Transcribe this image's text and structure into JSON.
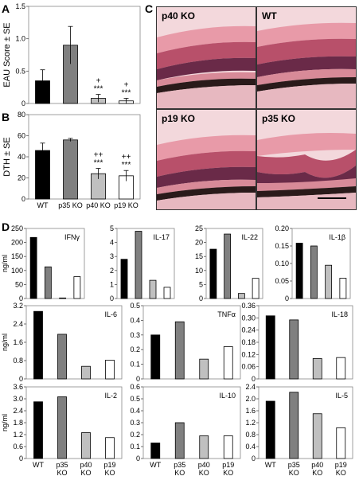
{
  "panel_letters": [
    "A",
    "B",
    "C",
    "D"
  ],
  "colors": {
    "WT": "#000000",
    "p35 KO": "#808080",
    "p40 KO": "#c0c0c0",
    "p19 KO": "#ffffff"
  },
  "groups": [
    "WT",
    "p35 KO",
    "p40 KO",
    "p19 KO"
  ],
  "micrographs": [
    {
      "label": "p40 KO"
    },
    {
      "label": "WT"
    },
    {
      "label": "p19 KO"
    },
    {
      "label": "p35 KO"
    }
  ],
  "chart_data": [
    {
      "id": "A",
      "type": "bar",
      "ylabel": "EAU Score ± SE",
      "ylim": [
        0,
        1.5
      ],
      "yticks": [
        "0",
        "0.5",
        "1.0",
        "1.5"
      ],
      "categories": [
        "WT",
        "p35 KO",
        "p40 KO",
        "p19 KO"
      ],
      "values": [
        0.35,
        0.9,
        0.08,
        0.04
      ],
      "errors": [
        0.17,
        0.29,
        0.06,
        0.04
      ],
      "annotations": [
        "",
        "",
        "+\n***",
        "+\n***"
      ],
      "show_x_labels": false
    },
    {
      "id": "B",
      "type": "bar",
      "ylabel": "DTH ± SE",
      "ylim": [
        0,
        80
      ],
      "yticks": [
        "0",
        "20",
        "40",
        "60",
        "80"
      ],
      "categories": [
        "WT",
        "p35 KO",
        "p40 KO",
        "p19 KO"
      ],
      "values": [
        46,
        56,
        24,
        22
      ],
      "errors": [
        7,
        1.5,
        5,
        5
      ],
      "annotations": [
        "",
        "",
        "++\n***",
        "++\n***"
      ],
      "show_x_labels": true
    },
    {
      "id": "IFNγ",
      "type": "bar",
      "title": "IFNγ",
      "ylabel": "ng/ml",
      "ylim": [
        0,
        250
      ],
      "yticks": [
        "0",
        "50",
        "100",
        "150",
        "200",
        "250"
      ],
      "categories": [
        "WT",
        "p35 KO",
        "p40 KO",
        "p19 KO"
      ],
      "values": [
        218,
        113,
        2,
        78
      ]
    },
    {
      "id": "IL-17",
      "type": "bar",
      "title": "IL-17",
      "ylabel": "",
      "ylim": [
        0,
        5
      ],
      "yticks": [
        "0",
        "1",
        "2",
        "3",
        "4",
        "5"
      ],
      "categories": [
        "WT",
        "p35 KO",
        "p40 KO",
        "p19 KO"
      ],
      "values": [
        2.8,
        4.8,
        1.3,
        0.8
      ]
    },
    {
      "id": "IL-22",
      "type": "bar",
      "title": "IL-22",
      "ylabel": "",
      "ylim": [
        0,
        25
      ],
      "yticks": [
        "0",
        "5",
        "10",
        "15",
        "20",
        "25"
      ],
      "categories": [
        "WT",
        "p35 KO",
        "p40 KO",
        "p19 KO"
      ],
      "values": [
        17.6,
        23,
        1.8,
        7.2
      ]
    },
    {
      "id": "IL-1β",
      "type": "bar",
      "title": "IL-1β",
      "ylabel": "",
      "ylim": [
        0,
        0.2
      ],
      "yticks": [
        "0",
        "0.05",
        "0.10",
        "0.15",
        "0.20"
      ],
      "categories": [
        "WT",
        "p35 KO",
        "p40 KO",
        "p19 KO"
      ],
      "values": [
        0.158,
        0.15,
        0.095,
        0.058
      ]
    },
    {
      "id": "IL-6",
      "type": "bar",
      "title": "IL-6",
      "ylabel": "ng/ml",
      "ylim": [
        0,
        3.2
      ],
      "yticks": [
        "0",
        "0.8",
        "1.6",
        "2.4",
        "3.2"
      ],
      "categories": [
        "WT",
        "p35 KO",
        "p40 KO",
        "p19 KO"
      ],
      "values": [
        2.95,
        1.95,
        0.55,
        0.82
      ]
    },
    {
      "id": "TNFα",
      "type": "bar",
      "title": "TNFα",
      "ylabel": "",
      "ylim": [
        0,
        0.5
      ],
      "yticks": [
        "0",
        "0.1",
        "0.2",
        "0.3",
        "0.4",
        "0.5"
      ],
      "categories": [
        "WT",
        "p35 KO",
        "p40 KO",
        "p19 KO"
      ],
      "values": [
        0.3,
        0.39,
        0.135,
        0.22
      ]
    },
    {
      "id": "IL-18",
      "type": "bar",
      "title": "IL-18",
      "ylabel": "",
      "ylim": [
        0,
        0.36
      ],
      "yticks": [
        "0",
        "0.06",
        "0.12",
        "0.18",
        "0.24",
        "0.30",
        "0.36"
      ],
      "categories": [
        "WT",
        "p35 KO",
        "p40 KO",
        "p19 KO"
      ],
      "values": [
        0.31,
        0.29,
        0.1,
        0.105
      ]
    },
    {
      "id": "IL-2",
      "type": "bar",
      "title": "IL-2",
      "ylabel": "ng/ml",
      "ylim": [
        0,
        3.6
      ],
      "yticks": [
        "0",
        "0.6",
        "1.2",
        "1.8",
        "2.4",
        "3.0",
        "3.6"
      ],
      "categories": [
        "WT",
        "p35 KO",
        "p40 KO",
        "p19 KO"
      ],
      "values": [
        2.85,
        3.1,
        1.3,
        1.05
      ],
      "xlabels": [
        "WT",
        "p35\nKO",
        "p40\nKO",
        "p19\nKO"
      ]
    },
    {
      "id": "IL-10",
      "type": "bar",
      "title": "IL-10",
      "ylabel": "",
      "ylim": [
        0,
        0.6
      ],
      "yticks": [
        "0",
        "0.1",
        "0.2",
        "0.3",
        "0.4",
        "0.5",
        "0.6"
      ],
      "categories": [
        "WT",
        "p35 KO",
        "p40 KO",
        "p19 KO"
      ],
      "values": [
        0.13,
        0.3,
        0.19,
        0.19
      ],
      "xlabels": [
        "WT",
        "p35\nKO",
        "p40\nKO",
        "p19\nKO"
      ]
    },
    {
      "id": "IL-5",
      "type": "bar",
      "title": "IL-5",
      "ylabel": "",
      "ylim": [
        0,
        2.4
      ],
      "yticks": [
        "0",
        "0.4",
        "0.8",
        "1.2",
        "1.6",
        "2.0",
        "2.4"
      ],
      "categories": [
        "WT",
        "p35 KO",
        "p40 KO",
        "p19 KO"
      ],
      "values": [
        1.92,
        2.22,
        1.5,
        1.03
      ],
      "xlabels": [
        "WT",
        "p35\nKO",
        "p40\nKO",
        "p19\nKO"
      ]
    }
  ]
}
